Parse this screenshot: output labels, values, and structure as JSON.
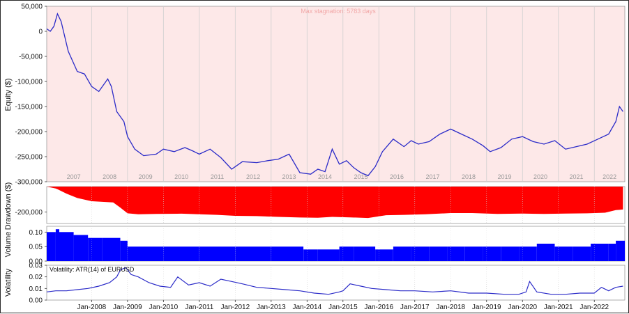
{
  "chart_data": [
    {
      "type": "line",
      "panel": "equity",
      "ylabel": "Equity ($)",
      "annotation": "Max stagnation: 5783 days",
      "ylim": [
        -300000,
        50000
      ],
      "yticks": [
        "50,000",
        "0",
        "-50,000",
        "-100,000",
        "-150,000",
        "-200,000",
        "-250,000",
        "-300,000"
      ],
      "year_labels": [
        "2007",
        "2008",
        "2009",
        "2010",
        "2011",
        "2012",
        "2013",
        "2014",
        "2015",
        "2016",
        "2017",
        "2018",
        "2019",
        "2020",
        "2021",
        "2022"
      ],
      "series_color": "#2b2bc8",
      "background": "#fde8e8",
      "x": [
        2006.75,
        2006.85,
        2006.95,
        2007.05,
        2007.15,
        2007.35,
        2007.6,
        2007.8,
        2008.0,
        2008.2,
        2008.45,
        2008.55,
        2008.7,
        2008.9,
        2009.0,
        2009.2,
        2009.45,
        2009.8,
        2010.0,
        2010.3,
        2010.6,
        2010.8,
        2011.0,
        2011.3,
        2011.6,
        2011.9,
        2012.2,
        2012.6,
        2012.9,
        2013.2,
        2013.5,
        2013.8,
        2014.1,
        2014.3,
        2014.5,
        2014.7,
        2014.9,
        2015.1,
        2015.3,
        2015.5,
        2015.7,
        2015.9,
        2016.1,
        2016.4,
        2016.7,
        2016.9,
        2017.1,
        2017.4,
        2017.7,
        2018.0,
        2018.3,
        2018.6,
        2018.9,
        2019.1,
        2019.4,
        2019.7,
        2020.0,
        2020.3,
        2020.6,
        2020.9,
        2021.2,
        2021.5,
        2021.8,
        2022.1,
        2022.4,
        2022.6,
        2022.7,
        2022.8
      ],
      "y": [
        5000,
        0,
        10000,
        35000,
        20000,
        -40000,
        -80000,
        -85000,
        -110000,
        -120000,
        -95000,
        -110000,
        -160000,
        -180000,
        -210000,
        -235000,
        -248000,
        -245000,
        -235000,
        -240000,
        -232000,
        -238000,
        -245000,
        -235000,
        -252000,
        -275000,
        -260000,
        -262000,
        -258000,
        -255000,
        -245000,
        -282000,
        -285000,
        -275000,
        -280000,
        -235000,
        -265000,
        -258000,
        -272000,
        -282000,
        -288000,
        -270000,
        -240000,
        -215000,
        -230000,
        -218000,
        -225000,
        -220000,
        -205000,
        -195000,
        -205000,
        -215000,
        -228000,
        -240000,
        -232000,
        -215000,
        -210000,
        -220000,
        -225000,
        -218000,
        -235000,
        -230000,
        -225000,
        -215000,
        -205000,
        -180000,
        -150000,
        -160000
      ]
    },
    {
      "type": "area",
      "panel": "drawdown",
      "ylabel": "Drawdown ($)",
      "ytick": "-200,000",
      "ylim": [
        -290000,
        0
      ],
      "fill_color": "#ff0000",
      "x": [
        2006.75,
        2007.0,
        2007.05,
        2007.3,
        2007.6,
        2008.0,
        2008.3,
        2008.6,
        2008.8,
        2009.0,
        2009.3,
        2009.8,
        2010.5,
        2011.0,
        2011.5,
        2012.0,
        2012.6,
        2013.2,
        2013.8,
        2014.3,
        2014.7,
        2015.2,
        2015.7,
        2016.2,
        2016.7,
        2017.3,
        2018.0,
        2018.6,
        2019.3,
        2020.0,
        2020.6,
        2021.2,
        2021.8,
        2022.3,
        2022.6,
        2022.8
      ],
      "y": [
        0,
        -15000,
        -20000,
        -55000,
        -90000,
        -115000,
        -120000,
        -125000,
        -165000,
        -210000,
        -218000,
        -215000,
        -213000,
        -218000,
        -222000,
        -230000,
        -232000,
        -238000,
        -243000,
        -245000,
        -238000,
        -242000,
        -247000,
        -225000,
        -222000,
        -218000,
        -208000,
        -208000,
        -215000,
        -212000,
        -215000,
        -212000,
        -210000,
        -205000,
        -185000,
        -180000
      ]
    },
    {
      "type": "bar",
      "panel": "volume",
      "ylabel": "Volume",
      "yticks": [
        "0.10",
        "0.05",
        "0.00"
      ],
      "ylim": [
        0,
        0.12
      ],
      "bar_color": "#0000ff",
      "x": [
        2006.75,
        2007.0,
        2007.1,
        2007.5,
        2007.9,
        2008.3,
        2008.8,
        2009.0,
        2010.0,
        2011.0,
        2012.0,
        2013.0,
        2013.9,
        2014.3,
        2014.9,
        2015.3,
        2015.9,
        2016.4,
        2016.9,
        2017.4,
        2017.9,
        2018.4,
        2018.9,
        2019.4,
        2019.9,
        2020.4,
        2020.9,
        2021.4,
        2021.9,
        2022.4,
        2022.6
      ],
      "y": [
        0.1,
        0.11,
        0.1,
        0.09,
        0.08,
        0.08,
        0.07,
        0.05,
        0.05,
        0.05,
        0.05,
        0.05,
        0.04,
        0.04,
        0.05,
        0.05,
        0.04,
        0.05,
        0.05,
        0.05,
        0.05,
        0.05,
        0.05,
        0.05,
        0.05,
        0.06,
        0.05,
        0.05,
        0.06,
        0.06,
        0.07
      ]
    },
    {
      "type": "line",
      "panel": "volatility",
      "ylabel": "Volatility",
      "legend": "Volatility: ATR(14) of EURUSD",
      "yticks": [
        "0.03",
        "0.02",
        "0.01",
        "0.00"
      ],
      "ylim": [
        0,
        0.03
      ],
      "series_color": "#2b2bc8",
      "xticks": [
        "Jan-2008",
        "Jan-2009",
        "Jan-2010",
        "Jan-2011",
        "Jan-2012",
        "Jan-2013",
        "Jan-2014",
        "Jan-2015",
        "Jan-2016",
        "Jan-2017",
        "Jan-2018",
        "Jan-2019",
        "Jan-2020",
        "Jan-2021",
        "Jan-2022"
      ],
      "x": [
        2006.75,
        2007.0,
        2007.3,
        2007.6,
        2007.9,
        2008.2,
        2008.5,
        2008.7,
        2008.8,
        2008.95,
        2009.1,
        2009.3,
        2009.6,
        2009.9,
        2010.2,
        2010.4,
        2010.7,
        2011.0,
        2011.3,
        2011.6,
        2011.9,
        2012.2,
        2012.6,
        2013.0,
        2013.4,
        2013.8,
        2014.2,
        2014.6,
        2014.9,
        2015.0,
        2015.2,
        2015.5,
        2015.8,
        2016.2,
        2016.6,
        2017.0,
        2017.5,
        2018.0,
        2018.5,
        2019.0,
        2019.5,
        2019.9,
        2020.1,
        2020.2,
        2020.4,
        2020.8,
        2021.2,
        2021.6,
        2022.0,
        2022.2,
        2022.4,
        2022.6,
        2022.8
      ],
      "y": [
        0.007,
        0.008,
        0.008,
        0.009,
        0.01,
        0.012,
        0.015,
        0.02,
        0.026,
        0.028,
        0.022,
        0.02,
        0.015,
        0.012,
        0.011,
        0.02,
        0.013,
        0.015,
        0.012,
        0.018,
        0.016,
        0.014,
        0.011,
        0.01,
        0.009,
        0.008,
        0.006,
        0.005,
        0.007,
        0.008,
        0.014,
        0.012,
        0.01,
        0.009,
        0.008,
        0.008,
        0.007,
        0.008,
        0.006,
        0.006,
        0.005,
        0.005,
        0.007,
        0.016,
        0.007,
        0.005,
        0.005,
        0.006,
        0.006,
        0.011,
        0.008,
        0.011,
        0.012
      ]
    }
  ]
}
